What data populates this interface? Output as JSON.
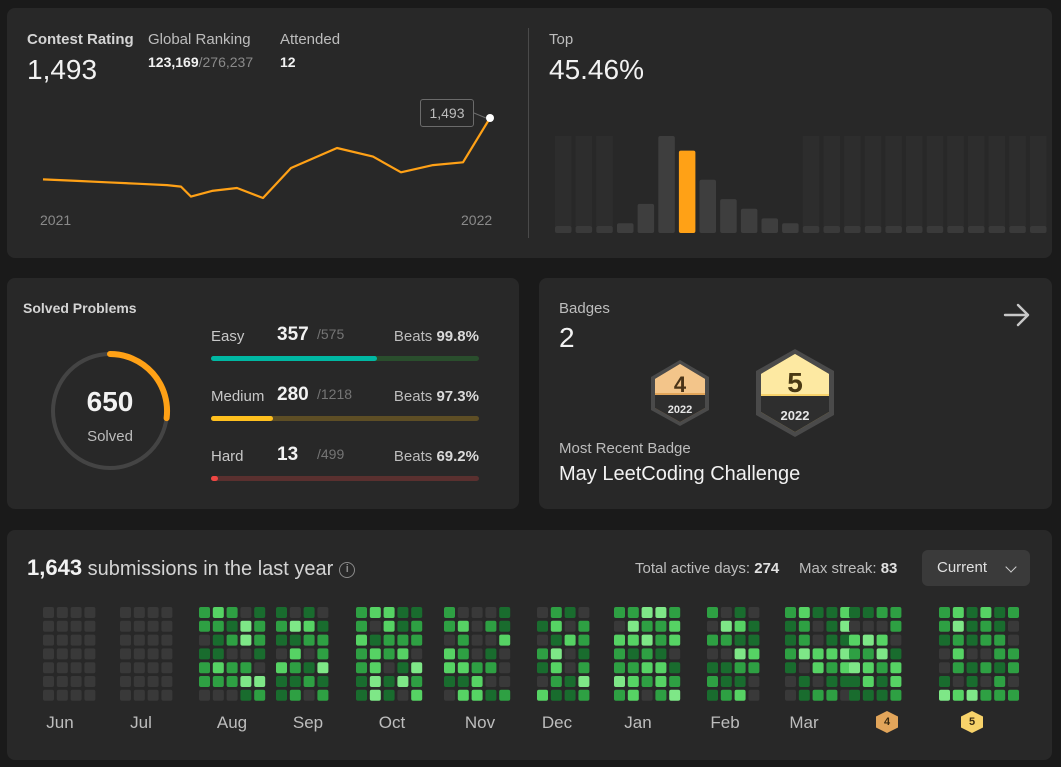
{
  "contest": {
    "rating_label": "Contest Rating",
    "rating_value": "1,493",
    "ranking_label": "Global Ranking",
    "ranking_value": "123,169",
    "ranking_total": "/276,237",
    "attended_label": "Attended",
    "attended_value": "12",
    "top_label": "Top",
    "top_value": "45.46%",
    "year_start": "2021",
    "year_end": "2022",
    "tooltip_value": "1,493",
    "rating_history": [
      1450,
      1449,
      1448,
      1447,
      1446,
      1445,
      1438,
      1442,
      1444,
      1437,
      1458,
      1472,
      1466,
      1455,
      1460,
      1462,
      1493
    ],
    "distribution": [
      1,
      1,
      1,
      2,
      6,
      20,
      17,
      11,
      7,
      5,
      3,
      2,
      1,
      1,
      1,
      1,
      1,
      1,
      1,
      1,
      1,
      1,
      1,
      1
    ],
    "highlight_index": 6,
    "accent_color": "#ffa116"
  },
  "solved": {
    "title": "Solved Problems",
    "total": "650",
    "total_label": "Solved",
    "ring_fraction": 0.15,
    "difficulties": [
      {
        "name": "Easy",
        "solved": "357",
        "total": "/575",
        "beats_label": "Beats",
        "beats": "99.8%",
        "fraction": 0.621,
        "color": "#00b8a3",
        "track": "#2a4e2d"
      },
      {
        "name": "Medium",
        "solved": "280",
        "total": "/1218",
        "beats_label": "Beats",
        "beats": "97.3%",
        "fraction": 0.23,
        "color": "#ffc01e",
        "track": "#5e4e25"
      },
      {
        "name": "Hard",
        "solved": "13",
        "total": "/499",
        "beats_label": "Beats",
        "beats": "69.2%",
        "fraction": 0.026,
        "color": "#ef4743",
        "track": "#5a302f"
      }
    ]
  },
  "badges": {
    "title": "Badges",
    "count": "2",
    "recent_label": "Most Recent Badge",
    "recent_name": "May LeetCoding Challenge",
    "items": [
      {
        "number": "4",
        "year": "2022"
      },
      {
        "number": "5",
        "year": "2022"
      }
    ]
  },
  "submissions": {
    "count": "1,643",
    "text": "submissions in the last year",
    "active_label": "Total active days:",
    "active_value": "274",
    "streak_label": "Max streak:",
    "streak_value": "83",
    "dropdown_value": "Current",
    "months": [
      "Jun",
      "Jul",
      "Aug",
      "Sep",
      "Oct",
      "Nov",
      "Dec",
      "Jan",
      "Feb",
      "Mar",
      "4",
      "5"
    ]
  }
}
